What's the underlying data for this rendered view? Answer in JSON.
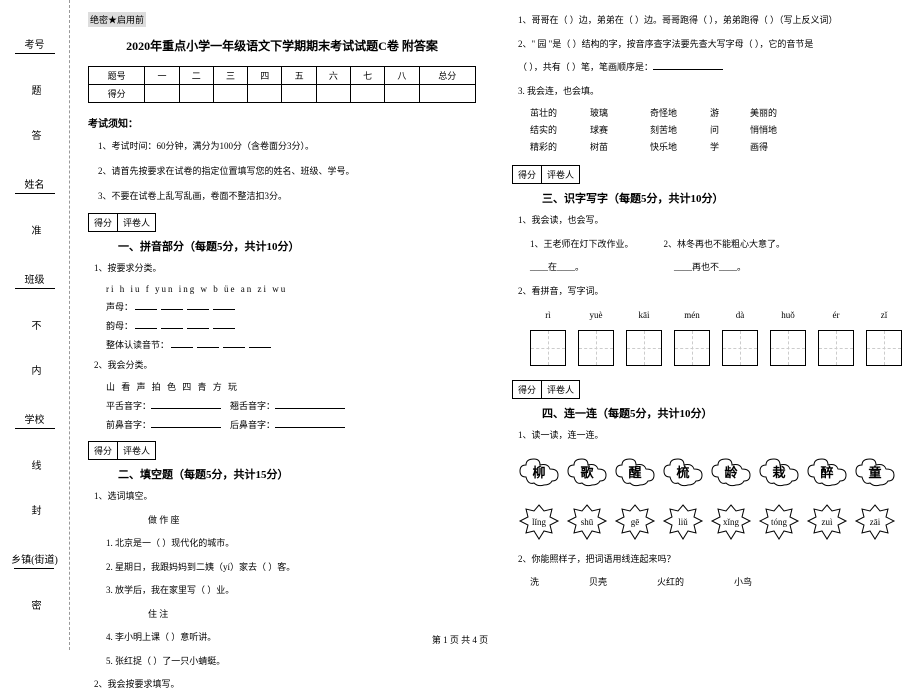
{
  "header": {
    "secret": "绝密★启用前",
    "title": "2020年重点小学一年级语文下学期期末考试试题C卷 附答案"
  },
  "gutter": {
    "labels": [
      "考号",
      "姓名",
      "班级",
      "学校",
      "乡镇(街道)"
    ],
    "marks": [
      "题",
      "答",
      "准",
      "不",
      "内",
      "线",
      "封",
      "密"
    ]
  },
  "score_table": {
    "row1": [
      "题号",
      "一",
      "二",
      "三",
      "四",
      "五",
      "六",
      "七",
      "八",
      "总分"
    ],
    "row2_label": "得分"
  },
  "notice": {
    "heading": "考试须知：",
    "items": [
      "1、考试时间：60分钟，满分为100分（含卷面分3分）。",
      "2、请首先按要求在试卷的指定位置填写您的姓名、班级、学号。",
      "3、不要在试卷上乱写乱画，卷面不整洁扣3分。"
    ]
  },
  "gradebox": {
    "a": "得分",
    "b": "评卷人"
  },
  "sections": {
    "s1": {
      "title": "一、拼音部分（每题5分，共计10分）"
    },
    "s2": {
      "title": "二、填空题（每题5分，共计15分）"
    },
    "s3": {
      "title": "三、识字写字（每题5分，共计10分）"
    },
    "s4": {
      "title": "四、连一连（每题5分，共计10分）"
    }
  },
  "q1_1": {
    "num": "1、按要求分类。",
    "letters": "ri  h  iu  f  yun  ing  w  b  üe  an  zi  wu",
    "lines": [
      "声母：",
      "韵母：",
      "整体认读音节："
    ]
  },
  "q1_2": {
    "num": "2、我会分类。",
    "chars": "山  看  声  拍  色  四  青  方  玩",
    "lines": [
      "平舌音字：",
      "翘舌音字：",
      "前鼻音字：",
      "后鼻音字："
    ]
  },
  "q2_1": {
    "num": "1、选词填空。",
    "words": "做    作    座",
    "items": [
      "1. 北京是一（    ）现代化的城市。",
      "2. 星期日，我跟妈妈到二姨（yí）家去（    ）客。",
      "3. 放学后，我在家里写（    ）业。",
      "sub_words",
      "住    注",
      "4. 李小明上课（    ）意听讲。",
      "5. 张红捉（    ）了一只小蜻蜓。"
    ]
  },
  "q2_2": {
    "num": "2、我会按要求填写。"
  },
  "right": {
    "r1": "1、哥哥在（    ）边，弟弟在（    ）边。哥哥跑得（    ），弟弟跑得（    ）（写上反义词）",
    "r2a": "2、\" 园 \"是（    ）结构的字，按音序查字法要先查大写字母（    ），它的音节是",
    "r2b": "（    ），共有（    ）笔，笔画顺序是：",
    "r3": "3. 我会连，也会填。",
    "grid": [
      [
        "茁壮的",
        "",
        "玻璃",
        "游",
        "美丽的"
      ],
      [
        "结实的",
        "",
        "球赛",
        "刻苦地",
        "问",
        "悄悄地"
      ],
      [
        "精彩的",
        "",
        "树苗",
        "快乐地",
        "学",
        "画得"
      ]
    ],
    "r3_row1_extra": "奇怪地",
    "q3_1": {
      "num": "1、我会读，也会写。",
      "a": "1、王老师在灯下改作业。",
      "b": "2、林冬再也不能粗心大意了。",
      "a1": "____在____。",
      "b1": "____再也不____。"
    },
    "q3_2": {
      "num": "2、看拼音，写字词。",
      "pinyin": [
        "rì",
        "yuè",
        "kāi",
        "mén",
        "dà",
        "huǒ",
        "ér",
        "zǐ"
      ]
    },
    "q4_1": {
      "num": "1、读一读，连一连。",
      "clouds": [
        "柳",
        "歌",
        "醒",
        "梳",
        "龄",
        "栽",
        "醉",
        "童"
      ],
      "leaves": [
        "lǐng",
        "shū",
        "gē",
        "liǔ",
        "xǐng",
        "tóng",
        "zuì",
        "zāi"
      ]
    },
    "q4_2": {
      "num": "2、你能照样子，把词语用线连起来吗？",
      "l1": [
        "洗",
        "贝壳",
        "火红的",
        "小鸟"
      ]
    }
  },
  "footer": "第 1 页 共 4 页"
}
